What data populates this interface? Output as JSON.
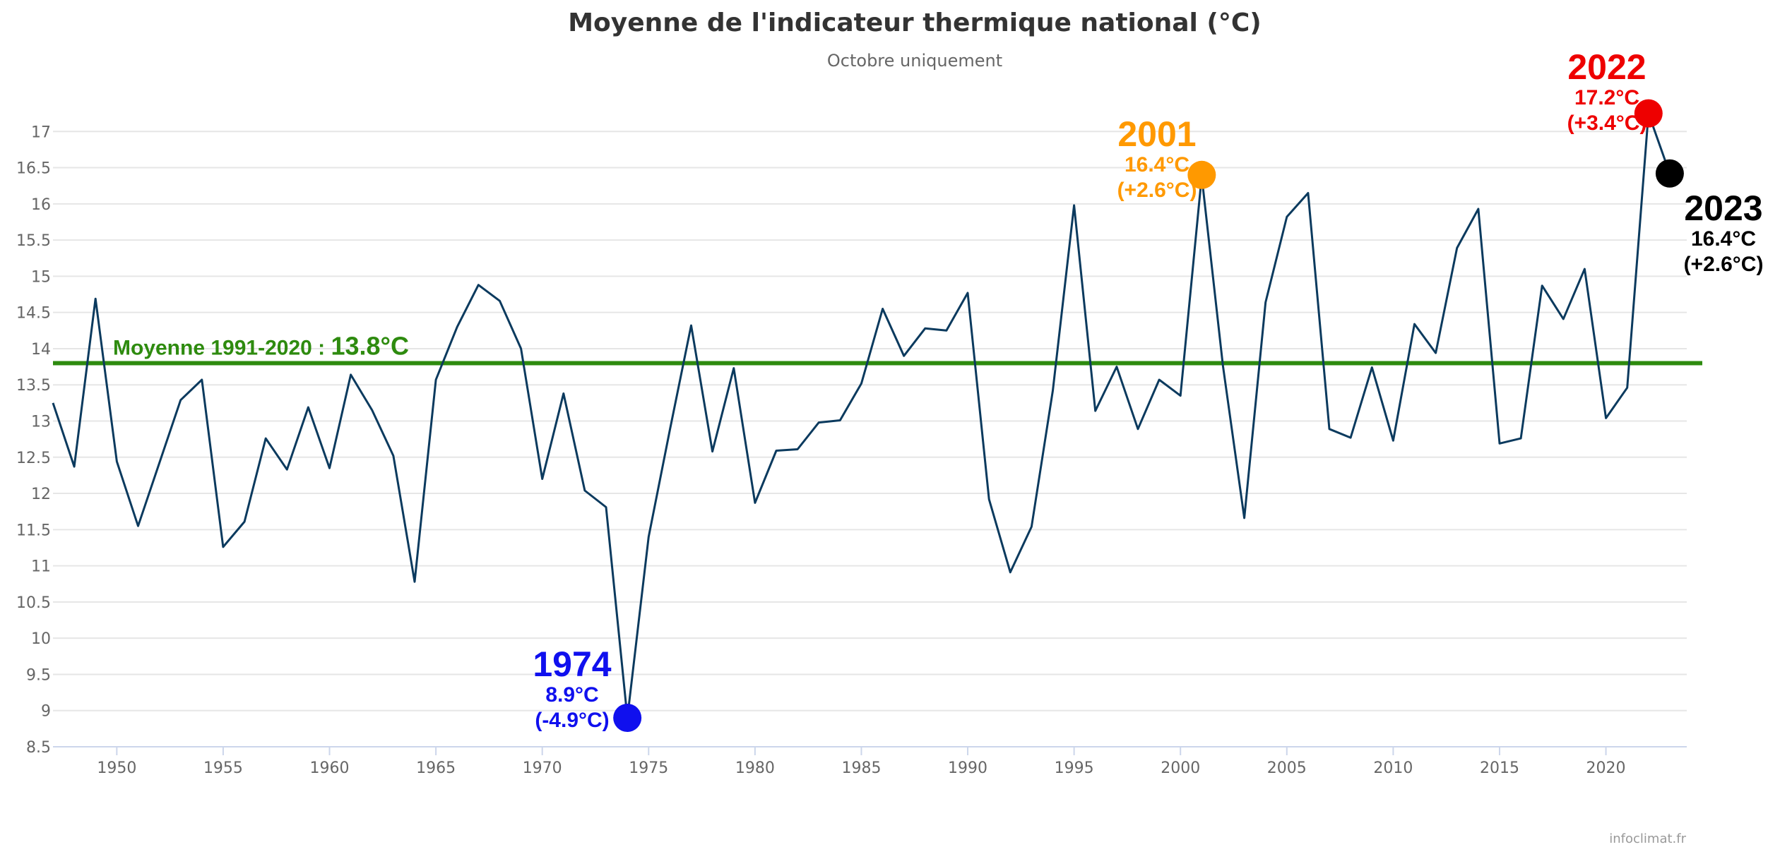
{
  "chart_data": {
    "type": "line",
    "title": "Moyenne de l'indicateur thermique national (°C)",
    "subtitle": "Octobre uniquement",
    "credit": "infoclimat.fr",
    "xlabel": "",
    "ylabel": "",
    "xlim": [
      1947,
      2023
    ],
    "ylim": [
      8.5,
      17.5
    ],
    "x_ticks": [
      1950,
      1955,
      1960,
      1965,
      1970,
      1975,
      1980,
      1985,
      1990,
      1995,
      2000,
      2005,
      2010,
      2015,
      2020
    ],
    "y_ticks": [
      8.5,
      9,
      9.5,
      10,
      10.5,
      11,
      11.5,
      12,
      12.5,
      13,
      13.5,
      14,
      14.5,
      15,
      15.5,
      16,
      16.5,
      17
    ],
    "grid": true,
    "series": [
      {
        "color": "#0b3a5e",
        "x": [
          1947,
          1948,
          1949,
          1950,
          1951,
          1952,
          1953,
          1954,
          1955,
          1956,
          1957,
          1958,
          1959,
          1960,
          1961,
          1962,
          1963,
          1964,
          1965,
          1966,
          1967,
          1968,
          1969,
          1970,
          1971,
          1972,
          1973,
          1974,
          1975,
          1976,
          1977,
          1978,
          1979,
          1980,
          1981,
          1982,
          1983,
          1984,
          1985,
          1986,
          1987,
          1988,
          1989,
          1990,
          1991,
          1992,
          1993,
          1994,
          1995,
          1996,
          1997,
          1998,
          1999,
          2000,
          2001,
          2002,
          2003,
          2004,
          2005,
          2006,
          2007,
          2008,
          2009,
          2010,
          2011,
          2012,
          2013,
          2014,
          2015,
          2016,
          2017,
          2018,
          2019,
          2020,
          2021,
          2022,
          2023
        ],
        "values": [
          13.25,
          12.37,
          14.69,
          12.44,
          11.55,
          12.42,
          13.29,
          13.57,
          11.26,
          11.61,
          12.76,
          12.33,
          13.19,
          12.35,
          13.64,
          13.15,
          12.52,
          10.78,
          13.57,
          14.3,
          14.88,
          14.66,
          14.0,
          12.2,
          13.38,
          12.04,
          11.81,
          8.9,
          11.4,
          12.88,
          14.32,
          12.58,
          13.73,
          11.87,
          12.59,
          12.61,
          12.98,
          13.01,
          13.52,
          14.55,
          13.9,
          14.28,
          14.25,
          14.77,
          11.92,
          10.91,
          11.54,
          13.42,
          15.98,
          13.14,
          13.75,
          12.89,
          13.57,
          13.35,
          16.38,
          13.76,
          11.66,
          14.64,
          15.82,
          16.15,
          12.89,
          12.77,
          13.74,
          12.73,
          14.34,
          13.94,
          15.39,
          15.93,
          12.69,
          12.76,
          14.87,
          14.41,
          15.1,
          13.04,
          13.46,
          17.25,
          16.42
        ]
      }
    ],
    "reference_line": {
      "value": 13.8,
      "color": "#2e8b0f",
      "label_prefix": "Moyenne 1991-2020 : ",
      "label_value": "13.8°C"
    },
    "highlights": [
      {
        "year": 1974,
        "value": 8.9,
        "color": "#1010ee",
        "label_year": "1974",
        "label_value": "8.9°C",
        "label_anomaly": "(-4.9°C)"
      },
      {
        "year": 2001,
        "value": 16.4,
        "color": "#ff9900",
        "label_year": "2001",
        "label_value": "16.4°C",
        "label_anomaly": "(+2.6°C)"
      },
      {
        "year": 2022,
        "value": 17.25,
        "color": "#ee0000",
        "label_year": "2022",
        "label_value": "17.2°C",
        "label_anomaly": "(+3.4°C)"
      },
      {
        "year": 2023,
        "value": 16.42,
        "color": "#000000",
        "label_year": "2023",
        "label_value": "16.4°C",
        "label_anomaly": "(+2.6°C)"
      }
    ]
  }
}
